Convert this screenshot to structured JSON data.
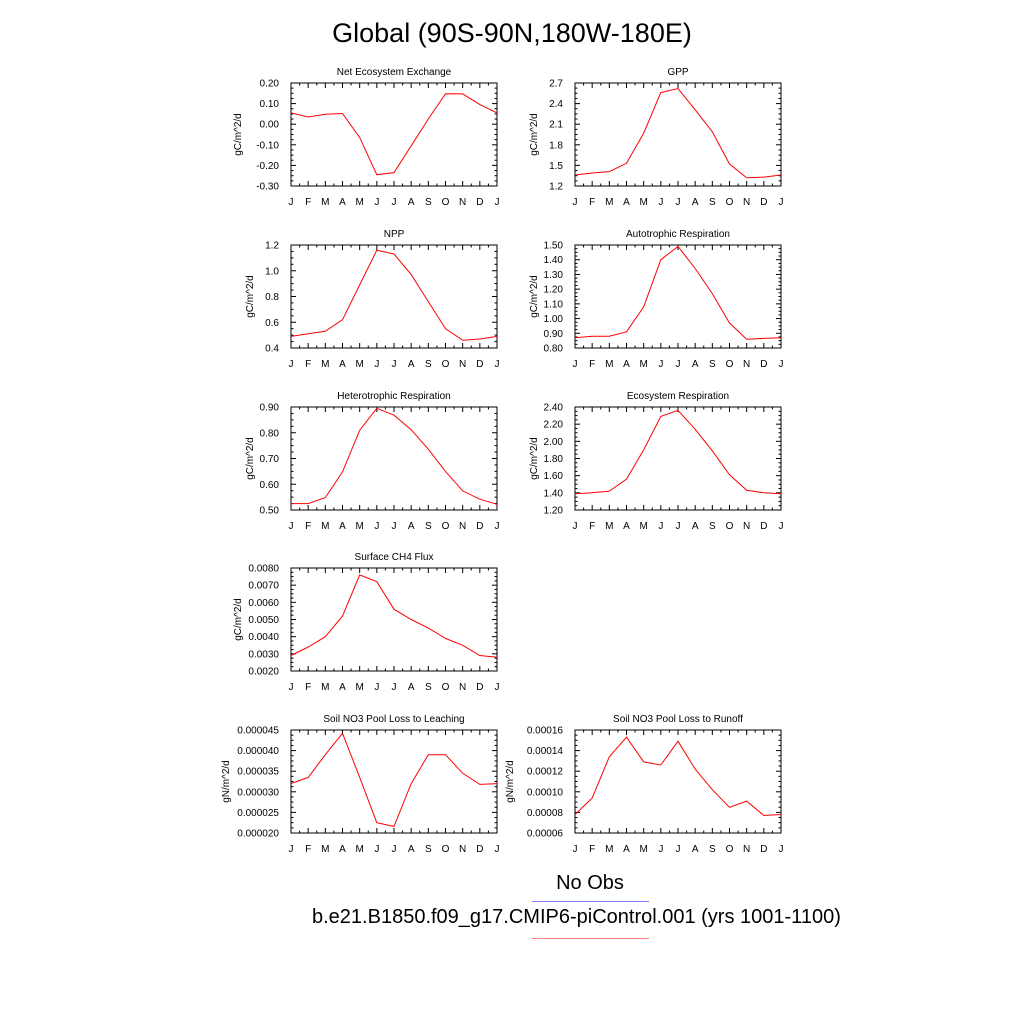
{
  "title": "Global (90S-90N,180W-180E)",
  "legend": {
    "items": [
      {
        "label": "No Obs",
        "color": "#7f7fff"
      },
      {
        "label": "b.e21.B1850.f09_g17.CMIP6-piControl.001 (yrs 1001-1100)",
        "color": "#ff7f7f"
      }
    ]
  },
  "line_color": "#ff0000",
  "chart_data": [
    {
      "type": "line",
      "title": "Net Ecosystem Exchange",
      "ylabel": "gC/m^2/d",
      "categories": [
        "J",
        "F",
        "M",
        "A",
        "M",
        "J",
        "J",
        "A",
        "S",
        "O",
        "N",
        "D",
        "J"
      ],
      "ylim": [
        -0.3,
        0.2
      ],
      "yticks": [
        "-0.30",
        "-0.20",
        "-0.10",
        "0.00",
        "0.10",
        "0.20"
      ],
      "ytick_values": [
        -0.3,
        -0.2,
        -0.1,
        0.0,
        0.1,
        0.2
      ],
      "series": [
        {
          "values": [
            0.055,
            0.035,
            0.048,
            0.052,
            -0.065,
            -0.245,
            -0.235,
            -0.105,
            0.025,
            0.148,
            0.147,
            0.095,
            0.055
          ]
        }
      ]
    },
    {
      "type": "line",
      "title": "GPP",
      "ylabel": "gC/m^2/d",
      "categories": [
        "J",
        "F",
        "M",
        "A",
        "M",
        "J",
        "J",
        "A",
        "S",
        "O",
        "N",
        "D",
        "J"
      ],
      "ylim": [
        1.2,
        2.7
      ],
      "yticks": [
        "1.2",
        "1.5",
        "1.8",
        "2.1",
        "2.4",
        "2.7"
      ],
      "ytick_values": [
        1.2,
        1.5,
        1.8,
        2.1,
        2.4,
        2.7
      ],
      "series": [
        {
          "values": [
            1.36,
            1.39,
            1.41,
            1.53,
            1.97,
            2.56,
            2.62,
            2.31,
            1.99,
            1.52,
            1.32,
            1.33,
            1.36
          ]
        }
      ]
    },
    {
      "type": "line",
      "title": "NPP",
      "ylabel": "gC/m^2/d",
      "categories": [
        "J",
        "F",
        "M",
        "A",
        "M",
        "J",
        "J",
        "A",
        "S",
        "O",
        "N",
        "D",
        "J"
      ],
      "ylim": [
        0.4,
        1.2
      ],
      "yticks": [
        "0.4",
        "0.6",
        "0.8",
        "1.0",
        "1.2"
      ],
      "ytick_values": [
        0.4,
        0.6,
        0.8,
        1.0,
        1.2
      ],
      "series": [
        {
          "values": [
            0.49,
            0.51,
            0.53,
            0.62,
            0.89,
            1.16,
            1.13,
            0.97,
            0.76,
            0.55,
            0.46,
            0.47,
            0.49
          ]
        }
      ]
    },
    {
      "type": "line",
      "title": "Autotrophic Respiration",
      "ylabel": "gC/m^2/d",
      "categories": [
        "J",
        "F",
        "M",
        "A",
        "M",
        "J",
        "J",
        "A",
        "S",
        "O",
        "N",
        "D",
        "J"
      ],
      "ylim": [
        0.8,
        1.5
      ],
      "yticks": [
        "0.80",
        "0.90",
        "1.00",
        "1.10",
        "1.20",
        "1.30",
        "1.40",
        "1.50"
      ],
      "ytick_values": [
        0.8,
        0.9,
        1.0,
        1.1,
        1.2,
        1.3,
        1.4,
        1.5
      ],
      "series": [
        {
          "values": [
            0.87,
            0.88,
            0.88,
            0.91,
            1.08,
            1.4,
            1.49,
            1.34,
            1.17,
            0.97,
            0.86,
            0.865,
            0.87
          ]
        }
      ]
    },
    {
      "type": "line",
      "title": "Heterotrophic Respiration",
      "ylabel": "gC/m^2/d",
      "categories": [
        "J",
        "F",
        "M",
        "A",
        "M",
        "J",
        "J",
        "A",
        "S",
        "O",
        "N",
        "D",
        "J"
      ],
      "ylim": [
        0.5,
        0.9
      ],
      "yticks": [
        "0.50",
        "0.60",
        "0.70",
        "0.80",
        "0.90"
      ],
      "ytick_values": [
        0.5,
        0.6,
        0.7,
        0.8,
        0.9
      ],
      "series": [
        {
          "values": [
            0.525,
            0.525,
            0.548,
            0.648,
            0.81,
            0.895,
            0.868,
            0.812,
            0.736,
            0.65,
            0.574,
            0.542,
            0.522
          ]
        }
      ]
    },
    {
      "type": "line",
      "title": "Ecosystem Respiration",
      "ylabel": "gC/m^2/d",
      "categories": [
        "J",
        "F",
        "M",
        "A",
        "M",
        "J",
        "J",
        "A",
        "S",
        "O",
        "N",
        "D",
        "J"
      ],
      "ylim": [
        1.2,
        2.4
      ],
      "yticks": [
        "1.20",
        "1.40",
        "1.60",
        "1.80",
        "2.00",
        "2.20",
        "2.40"
      ],
      "ytick_values": [
        1.2,
        1.4,
        1.6,
        1.8,
        2.0,
        2.2,
        2.4
      ],
      "series": [
        {
          "values": [
            1.39,
            1.4,
            1.42,
            1.56,
            1.9,
            2.29,
            2.36,
            2.14,
            1.89,
            1.61,
            1.43,
            1.4,
            1.39
          ]
        }
      ]
    },
    {
      "type": "line",
      "title": "Surface CH4 Flux",
      "ylabel": "gC/m^2/d",
      "categories": [
        "J",
        "F",
        "M",
        "A",
        "M",
        "J",
        "J",
        "A",
        "S",
        "O",
        "N",
        "D",
        "J"
      ],
      "ylim": [
        0.002,
        0.008
      ],
      "yticks": [
        "0.0020",
        "0.0030",
        "0.0040",
        "0.0050",
        "0.0060",
        "0.0070",
        "0.0080"
      ],
      "ytick_values": [
        0.002,
        0.003,
        0.004,
        0.005,
        0.006,
        0.007,
        0.008
      ],
      "series": [
        {
          "values": [
            0.0029,
            0.0034,
            0.004,
            0.0052,
            0.0076,
            0.0072,
            0.0056,
            0.005,
            0.0045,
            0.0039,
            0.0035,
            0.0029,
            0.0028
          ]
        }
      ]
    },
    {
      "type": "line",
      "title": "Soil NO3 Pool Loss to Leaching",
      "ylabel": "gN/m^2/d",
      "categories": [
        "J",
        "F",
        "M",
        "A",
        "M",
        "J",
        "J",
        "A",
        "S",
        "O",
        "N",
        "D",
        "J"
      ],
      "ylim": [
        2e-05,
        4.5e-05
      ],
      "yticks": [
        "0.000020",
        "0.000025",
        "0.000030",
        "0.000035",
        "0.000040",
        "0.000045"
      ],
      "ytick_values": [
        2e-05,
        2.5e-05,
        3e-05,
        3.5e-05,
        4e-05,
        4.5e-05
      ],
      "series": [
        {
          "values": [
            3.2e-05,
            3.35e-05,
            3.9e-05,
            4.42e-05,
            3.35e-05,
            2.25e-05,
            2.16e-05,
            3.2e-05,
            3.9e-05,
            3.9e-05,
            3.45e-05,
            3.18e-05,
            3.2e-05
          ]
        }
      ]
    },
    {
      "type": "line",
      "title": "Soil NO3 Pool Loss to Runoff",
      "ylabel": "gN/m^2/d",
      "categories": [
        "J",
        "F",
        "M",
        "A",
        "M",
        "J",
        "J",
        "A",
        "S",
        "O",
        "N",
        "D",
        "J"
      ],
      "ylim": [
        6e-05,
        0.00016
      ],
      "yticks": [
        "0.00006",
        "0.00008",
        "0.00010",
        "0.00012",
        "0.00014",
        "0.00016"
      ],
      "ytick_values": [
        6e-05,
        8e-05,
        0.0001,
        0.00012,
        0.00014,
        0.00016
      ],
      "series": [
        {
          "values": [
            7.8e-05,
            9.4e-05,
            0.000134,
            0.000153,
            0.000129,
            0.000126,
            0.000149,
            0.000122,
            0.000102,
            8.5e-05,
            9.1e-05,
            7.7e-05,
            7.8e-05
          ]
        }
      ]
    }
  ]
}
